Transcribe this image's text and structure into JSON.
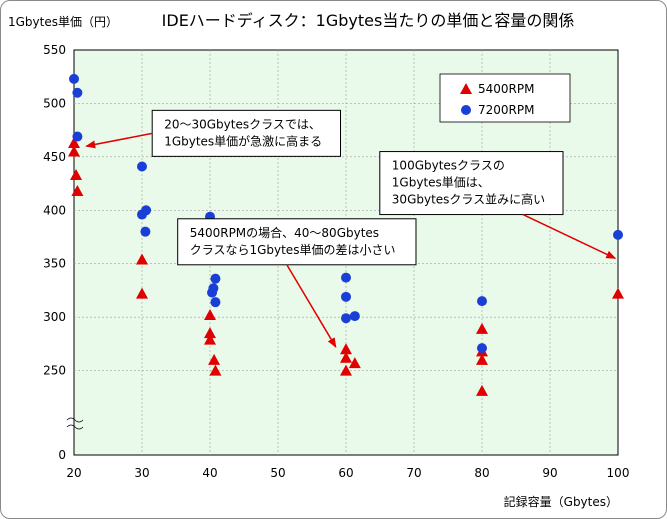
{
  "chart_data": {
    "type": "scatter",
    "title": "IDEハードディスク：1Gbytes当たりの単価と容量の関係",
    "ylabel": "1Gbytes単価（円）",
    "xlabel": "記録容量（Gbytes）",
    "xlim": [
      20,
      100
    ],
    "ylim": [
      200,
      550
    ],
    "y_axis_break": true,
    "y_zero_tick": 0,
    "x_ticks": [
      20,
      30,
      40,
      50,
      60,
      70,
      80,
      90,
      100
    ],
    "y_ticks": [
      250,
      300,
      350,
      400,
      450,
      500,
      550
    ],
    "grid": true,
    "legend_position": "top-right",
    "background_color": "#eafaea",
    "series": [
      {
        "name": "5400RPM",
        "marker": "triangle",
        "color": "#e00000",
        "points": [
          [
            20,
            463
          ],
          [
            20,
            455
          ],
          [
            20.3,
            433
          ],
          [
            20.5,
            418
          ],
          [
            30,
            354
          ],
          [
            30,
            322
          ],
          [
            40,
            302
          ],
          [
            40,
            285
          ],
          [
            40,
            279
          ],
          [
            40.6,
            260
          ],
          [
            40.8,
            250
          ],
          [
            60,
            270
          ],
          [
            60,
            262
          ],
          [
            61.3,
            257
          ],
          [
            60,
            250
          ],
          [
            80,
            289
          ],
          [
            80,
            268
          ],
          [
            80,
            260
          ],
          [
            80,
            231
          ],
          [
            100,
            322
          ]
        ]
      },
      {
        "name": "7200RPM",
        "marker": "circle",
        "color": "#1a3fd6",
        "points": [
          [
            20,
            523
          ],
          [
            20.5,
            510
          ],
          [
            20.5,
            469
          ],
          [
            30,
            441
          ],
          [
            30,
            396
          ],
          [
            30.6,
            400
          ],
          [
            30.5,
            380
          ],
          [
            40,
            394
          ],
          [
            40.5,
            327
          ],
          [
            40.3,
            323
          ],
          [
            40.8,
            336
          ],
          [
            40.8,
            314
          ],
          [
            60,
            337
          ],
          [
            60,
            319
          ],
          [
            60,
            299
          ],
          [
            61.3,
            301
          ],
          [
            80,
            315
          ],
          [
            80,
            271
          ],
          [
            100,
            377
          ]
        ]
      }
    ],
    "annotations": [
      {
        "lines": [
          "20〜30Gbytesクラスでは、",
          "1Gbytes単価が急激に高まる"
        ],
        "arrow_from": [
          31.5,
          472
        ],
        "arrow_to": [
          21.8,
          460
        ]
      },
      {
        "lines": [
          "5400RPMの場合、40〜80Gbytes",
          "クラスなら1Gbytes単価の差は小さい"
        ],
        "arrow_from": [
          51.3,
          349
        ],
        "arrow_to": [
          58.5,
          272
        ]
      },
      {
        "lines": [
          "100Gbytesクラスの",
          "1Gbytes単価は、",
          "30Gbytesクラス並みに高い"
        ],
        "arrow_from": [
          87.5,
          396
        ],
        "arrow_to": [
          99.6,
          355
        ]
      }
    ]
  }
}
